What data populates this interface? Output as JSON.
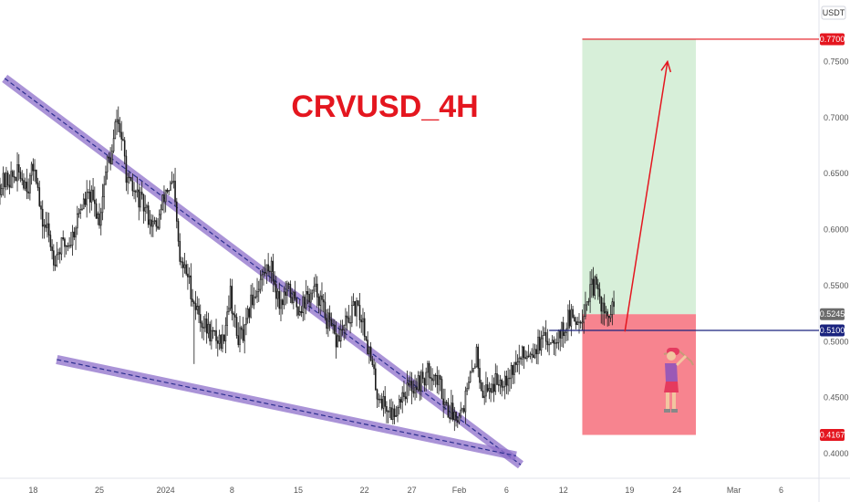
{
  "chart_data": {
    "type": "candlestick",
    "title": "CRVUSD_4H",
    "currency": "USDT",
    "y_ticks": [
      "0.7700",
      "0.7500",
      "0.7000",
      "0.6500",
      "0.6000",
      "0.5500",
      "0.5245",
      "0.5100",
      "0.5000",
      "0.4500",
      "0.4167",
      "0.4000"
    ],
    "y_axis_plain_ticks": [
      0.75,
      0.7,
      0.65,
      0.6,
      0.55,
      0.5,
      0.45,
      0.4
    ],
    "ylim": [
      0.378,
      0.805
    ],
    "x_ticks": [
      {
        "label": "18",
        "day": 18
      },
      {
        "label": "25",
        "day": 25
      },
      {
        "label": "2024",
        "day": 32
      },
      {
        "label": "8",
        "day": 39
      },
      {
        "label": "15",
        "day": 46
      },
      {
        "label": "22",
        "day": 53
      },
      {
        "label": "27",
        "day": 58
      },
      {
        "label": "Feb",
        "day": 63
      },
      {
        "label": "6",
        "day": 68
      },
      {
        "label": "12",
        "day": 74
      },
      {
        "label": "19",
        "day": 81
      },
      {
        "label": "24",
        "day": 86
      },
      {
        "label": "Mar",
        "day": 92
      },
      {
        "label": "6",
        "day": 97
      }
    ],
    "x_domain_days": [
      14.5,
      101
    ],
    "price_labels": {
      "target": {
        "value": 0.77,
        "label": "0.7700",
        "color": "#e4161f"
      },
      "current": {
        "value": 0.5245,
        "label": "0.5245",
        "color": "#6b6b6b"
      },
      "entry": {
        "value": 0.51,
        "label": "0.5100",
        "color": "#1a237e"
      },
      "stop": {
        "value": 0.4167,
        "label": "0.4167",
        "color": "#e4161f"
      }
    },
    "position": {
      "entry": 0.5245,
      "target": 0.77,
      "stop": 0.4167,
      "start_day": 76,
      "end_day": 88,
      "profit_color": "#d7efd9",
      "loss_color": "#f7848f"
    },
    "horizontal_line": {
      "value": 0.51,
      "start_day": 72.5,
      "color": "#1a237e"
    },
    "wedge": {
      "upper": {
        "from": [
          15,
          0.735
        ],
        "to": [
          69.5,
          0.39
        ]
      },
      "lower": {
        "from": [
          20.5,
          0.484
        ],
        "to": [
          69,
          0.398
        ]
      },
      "color": "#8e6fc9"
    },
    "arrow": {
      "from": [
        80.5,
        0.509
      ],
      "to": [
        85,
        0.75
      ],
      "color": "#e4161f"
    },
    "anchors": [
      [
        14.5,
        0.64
      ],
      [
        15.5,
        0.645
      ],
      [
        16.5,
        0.65
      ],
      [
        17.5,
        0.64
      ],
      [
        18.2,
        0.66
      ],
      [
        18.8,
        0.61
      ],
      [
        19.5,
        0.6
      ],
      [
        20.2,
        0.575
      ],
      [
        21.0,
        0.585
      ],
      [
        22.0,
        0.59
      ],
      [
        23.0,
        0.62
      ],
      [
        24.0,
        0.63
      ],
      [
        25.0,
        0.61
      ],
      [
        25.8,
        0.66
      ],
      [
        26.3,
        0.665
      ],
      [
        26.8,
        0.7
      ],
      [
        27.3,
        0.685
      ],
      [
        28.0,
        0.64
      ],
      [
        29.0,
        0.63
      ],
      [
        30.0,
        0.615
      ],
      [
        31.0,
        0.6
      ],
      [
        32.0,
        0.635
      ],
      [
        32.8,
        0.64
      ],
      [
        33.5,
        0.57
      ],
      [
        34.3,
        0.56
      ],
      [
        35.0,
        0.535
      ],
      [
        36.0,
        0.515
      ],
      [
        37.0,
        0.505
      ],
      [
        38.0,
        0.5
      ],
      [
        38.8,
        0.545
      ],
      [
        39.5,
        0.505
      ],
      [
        40.3,
        0.505
      ],
      [
        41.0,
        0.535
      ],
      [
        42.0,
        0.555
      ],
      [
        43.0,
        0.57
      ],
      [
        44.0,
        0.535
      ],
      [
        45.0,
        0.545
      ],
      [
        46.0,
        0.53
      ],
      [
        47.0,
        0.54
      ],
      [
        48.0,
        0.545
      ],
      [
        49.0,
        0.52
      ],
      [
        50.0,
        0.5
      ],
      [
        51.0,
        0.515
      ],
      [
        52.0,
        0.53
      ],
      [
        52.8,
        0.52
      ],
      [
        53.5,
        0.49
      ],
      [
        54.3,
        0.455
      ],
      [
        55.0,
        0.445
      ],
      [
        56.0,
        0.435
      ],
      [
        57.0,
        0.455
      ],
      [
        58.0,
        0.46
      ],
      [
        59.0,
        0.465
      ],
      [
        60.0,
        0.475
      ],
      [
        61.0,
        0.46
      ],
      [
        61.8,
        0.44
      ],
      [
        62.5,
        0.435
      ],
      [
        63.3,
        0.44
      ],
      [
        64.0,
        0.46
      ],
      [
        64.8,
        0.49
      ],
      [
        65.5,
        0.455
      ],
      [
        66.3,
        0.46
      ],
      [
        67.0,
        0.465
      ],
      [
        68.0,
        0.47
      ],
      [
        69.0,
        0.48
      ],
      [
        70.0,
        0.49
      ],
      [
        71.0,
        0.495
      ],
      [
        72.0,
        0.5
      ],
      [
        73.0,
        0.505
      ],
      [
        74.0,
        0.51
      ],
      [
        74.5,
        0.52
      ],
      [
        75.5,
        0.52
      ],
      [
        76.0,
        0.525
      ],
      [
        76.8,
        0.545
      ],
      [
        77.3,
        0.55
      ],
      [
        78.0,
        0.535
      ],
      [
        78.5,
        0.52
      ],
      [
        79.0,
        0.525
      ],
      [
        79.5,
        0.53
      ]
    ],
    "grid": false,
    "legend": "none"
  },
  "icons": {
    "figure": "golfer-icon"
  }
}
